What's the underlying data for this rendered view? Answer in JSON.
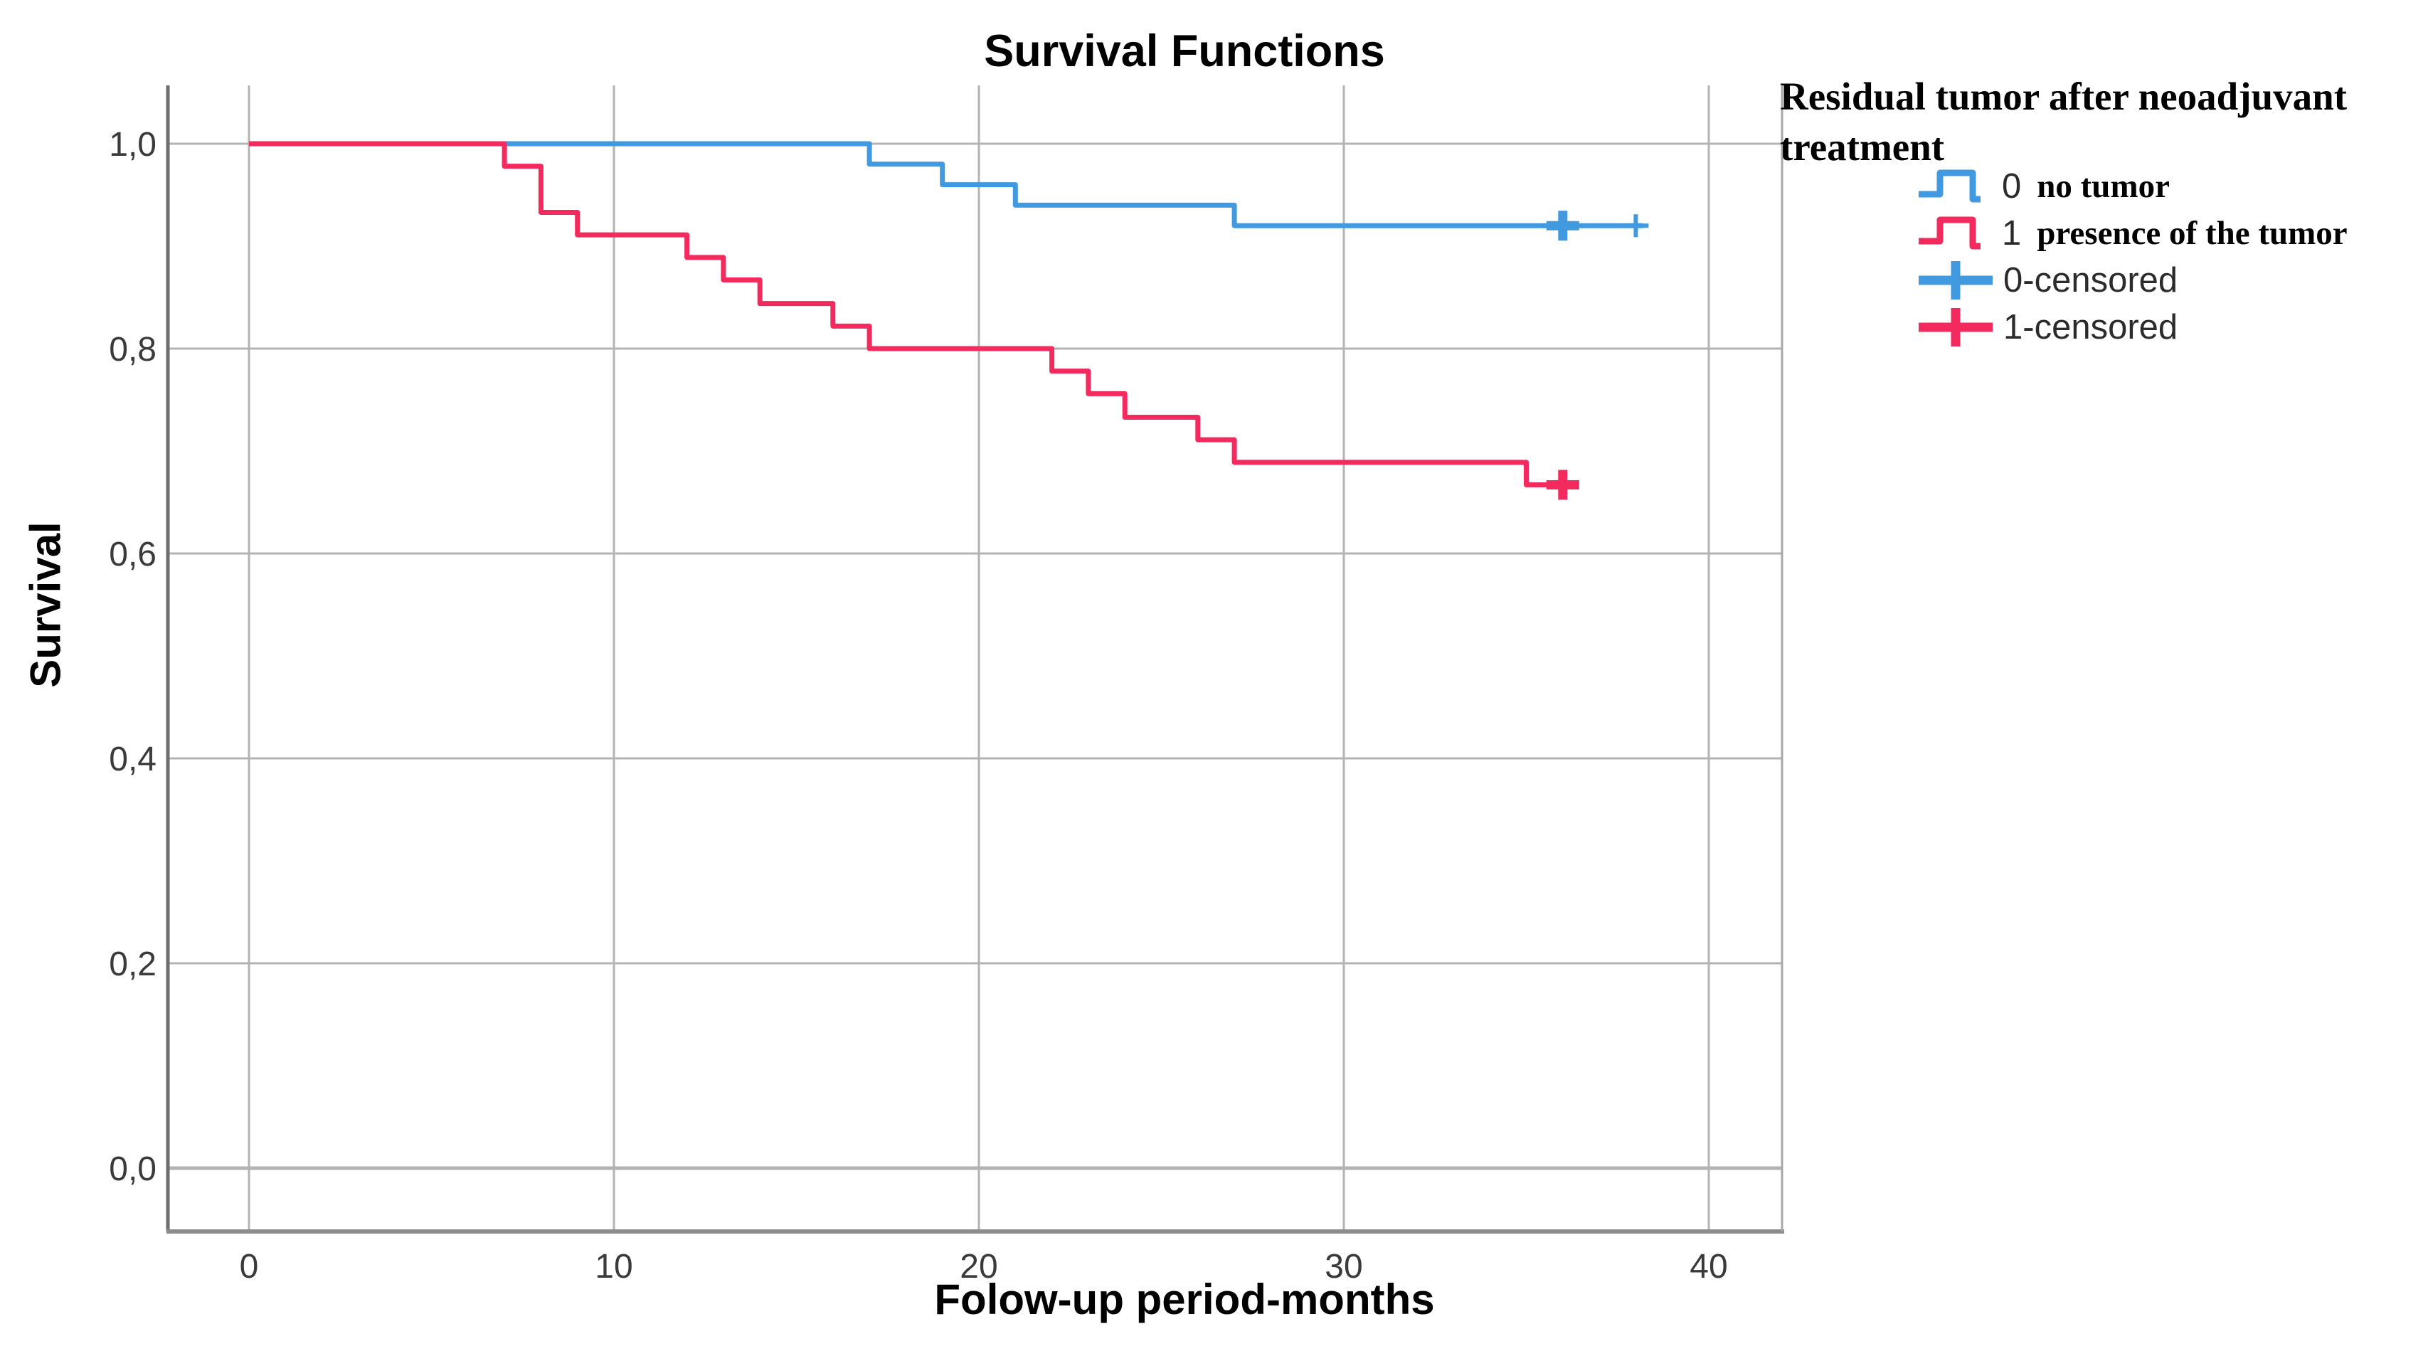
{
  "title": "Survival Functions",
  "axes": {
    "x_label": "Folow-up period-months",
    "y_label": "Survival",
    "x_ticks": [
      {
        "label": "0",
        "value": 0
      },
      {
        "label": "10",
        "value": 10
      },
      {
        "label": "20",
        "value": 20
      },
      {
        "label": "30",
        "value": 30
      },
      {
        "label": "40",
        "value": 40
      }
    ],
    "y_ticks": [
      {
        "label": "1,0",
        "value": 1.0
      },
      {
        "label": "0,8",
        "value": 0.8
      },
      {
        "label": "0,6",
        "value": 0.6
      },
      {
        "label": "0,4",
        "value": 0.4
      },
      {
        "label": "0,2",
        "value": 0.2
      },
      {
        "label": "0,0",
        "value": 0.0
      }
    ]
  },
  "legend": {
    "title_line1": "Residual tumor after neoadjuvant",
    "title_line2": "treatment",
    "items": [
      {
        "key": "no-tumor",
        "type": "step",
        "series": "blue",
        "prefix": "0",
        "label": "no tumor"
      },
      {
        "key": "presence-of-tumor",
        "type": "step",
        "series": "red",
        "prefix": "1",
        "label": "presence of the tumor"
      },
      {
        "key": "0-censored",
        "type": "plus",
        "series": "blue",
        "prefix": "",
        "label": "0-censored"
      },
      {
        "key": "1-censored",
        "type": "plus",
        "series": "red",
        "prefix": "",
        "label": "1-censored"
      }
    ]
  },
  "colors": {
    "blue": "#4199e0",
    "red": "#f22a5e",
    "gridline": "#b3b3b3",
    "axis_left": "#6e6e6e",
    "frame_bottom": "#8c8c8c",
    "frame_right": "#a8a8a8",
    "tick_text": "#3a3a3a",
    "background": "#ffffff"
  },
  "chart_data": {
    "type": "line",
    "subtype": "kaplan-meier-step",
    "title": "Survival Functions",
    "xlabel": "Folow-up period-months",
    "ylabel": "Survival",
    "xlim": [
      0,
      42
    ],
    "ylim": [
      0.0,
      1.0
    ],
    "x_gridlines": [
      0,
      10,
      20,
      30,
      40
    ],
    "y_gridlines": [
      0.0,
      0.2,
      0.4,
      0.6,
      0.8,
      1.0
    ],
    "grid": true,
    "legend_position": "right",
    "series": [
      {
        "name": "0 no tumor",
        "color_key": "blue",
        "steps": [
          [
            0,
            1.0
          ],
          [
            17,
            0.98
          ],
          [
            19,
            0.96
          ],
          [
            21,
            0.94
          ],
          [
            27,
            0.92
          ]
        ],
        "line_end_x": 38.2,
        "censored": [
          {
            "x": 36,
            "y": 0.92,
            "bold": true
          },
          {
            "x": 38,
            "y": 0.92,
            "bold": false
          }
        ]
      },
      {
        "name": "1 presence of the tumor",
        "color_key": "red",
        "steps": [
          [
            0,
            1.0
          ],
          [
            7,
            0.978
          ],
          [
            8,
            0.933
          ],
          [
            9,
            0.911
          ],
          [
            12,
            0.889
          ],
          [
            13,
            0.867
          ],
          [
            14,
            0.844
          ],
          [
            16,
            0.822
          ],
          [
            17,
            0.8
          ],
          [
            22,
            0.778
          ],
          [
            23,
            0.756
          ],
          [
            24,
            0.733
          ],
          [
            26,
            0.711
          ],
          [
            27,
            0.689
          ],
          [
            35,
            0.667
          ]
        ],
        "line_end_x": 36.3,
        "censored": [
          {
            "x": 36,
            "y": 0.667,
            "bold": true
          }
        ]
      }
    ]
  }
}
